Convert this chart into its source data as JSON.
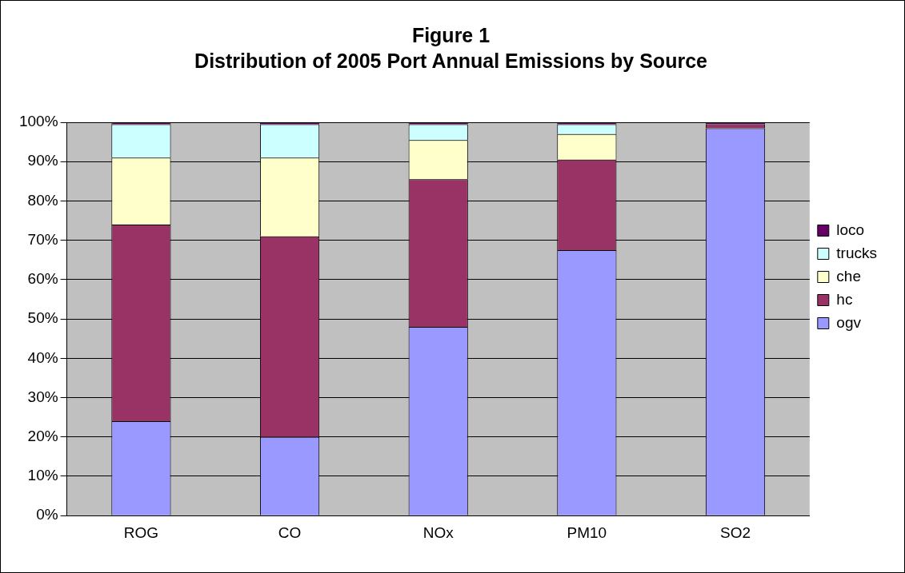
{
  "chart_data": {
    "type": "bar",
    "title": "Figure 1",
    "subtitle": "Distribution of 2005 Port Annual Emissions by Source",
    "categories": [
      "ROG",
      "CO",
      "NOx",
      "PM10",
      "SO2"
    ],
    "stacked": true,
    "series": [
      {
        "name": "ogv",
        "color": "#9999ff",
        "values": [
          24,
          20,
          48,
          67.5,
          98.5
        ]
      },
      {
        "name": "hc",
        "color": "#993366",
        "values": [
          50,
          51,
          37.5,
          23,
          1
        ]
      },
      {
        "name": "che",
        "color": "#ffffcc",
        "values": [
          17,
          20,
          10,
          6.5,
          0
        ]
      },
      {
        "name": "trucks",
        "color": "#ccffff",
        "values": [
          8.5,
          8.5,
          4,
          2.5,
          0
        ]
      },
      {
        "name": "loco",
        "color": "#660066",
        "values": [
          0.5,
          0.5,
          0.5,
          0.5,
          0.5
        ]
      }
    ],
    "ylim": [
      0,
      100
    ],
    "yticks": [
      {
        "value": 0,
        "label": "0%"
      },
      {
        "value": 10,
        "label": "10%"
      },
      {
        "value": 20,
        "label": "20%"
      },
      {
        "value": 30,
        "label": "30%"
      },
      {
        "value": 40,
        "label": "40%"
      },
      {
        "value": 50,
        "label": "50%"
      },
      {
        "value": 60,
        "label": "60%"
      },
      {
        "value": 70,
        "label": "70%"
      },
      {
        "value": 80,
        "label": "80%"
      },
      {
        "value": 90,
        "label": "90%"
      },
      {
        "value": 100,
        "label": "100%"
      }
    ],
    "grid": "y",
    "legend": "right"
  }
}
